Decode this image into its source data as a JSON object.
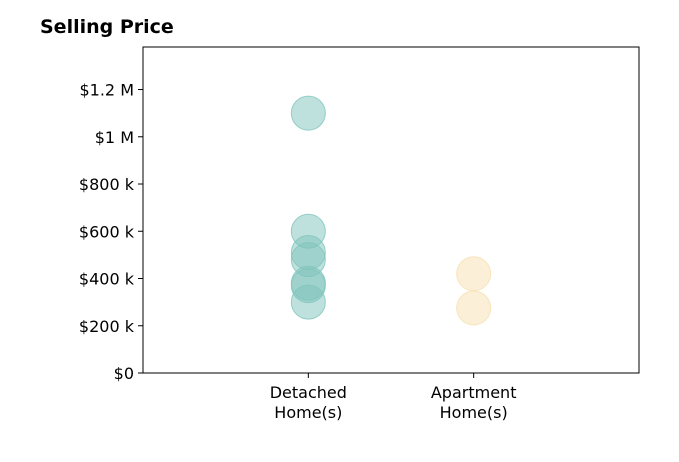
{
  "chart_data": {
    "type": "scatter",
    "title": "Selling Price",
    "xlabel": "",
    "ylabel": "",
    "categories": [
      [
        "Detached",
        "Home(s)"
      ],
      [
        "Apartment",
        "Home(s)"
      ]
    ],
    "series": [
      {
        "category": 0,
        "color": "#7fc4bb",
        "values": [
          1100000,
          600000,
          510000,
          480000,
          380000,
          370000,
          300000
        ]
      },
      {
        "category": 1,
        "color": "#f7e0b0",
        "values": [
          420000,
          275000
        ]
      }
    ],
    "yticks": [
      0,
      200000,
      400000,
      600000,
      800000,
      1000000,
      1200000
    ],
    "ytick_labels": [
      "$0",
      "$200 k",
      "$400 k",
      "$600 k",
      "$800 k",
      "$1 M",
      "$1.2 M"
    ],
    "ylim": [
      0,
      1380000
    ],
    "xlim": [
      -1,
      2
    ],
    "grid": false,
    "legend": "none"
  }
}
